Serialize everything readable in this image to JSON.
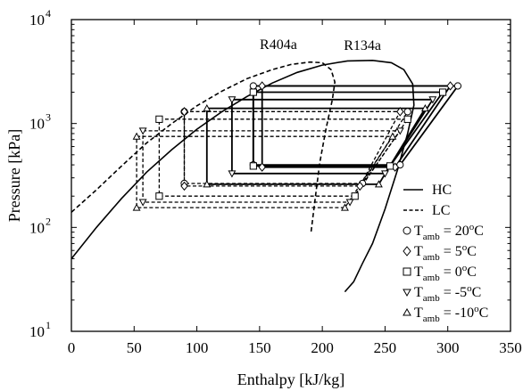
{
  "chart_data": {
    "type": "line",
    "xlabel": "Enthalpy [kJ/kg]",
    "ylabel": "Pressure [kPa]",
    "xlim": [
      0,
      350
    ],
    "ylim": [
      10,
      10000
    ],
    "yscale": "log",
    "x_ticks": [
      "0",
      "50",
      "100",
      "150",
      "200",
      "250",
      "300",
      "350"
    ],
    "y_ticks": [
      {
        "base": "10",
        "exp": "1"
      },
      {
        "base": "10",
        "exp": "2"
      },
      {
        "base": "10",
        "exp": "3"
      },
      {
        "base": "10",
        "exp": "4"
      }
    ],
    "grid": false,
    "legend_position": "bottom-right",
    "curve_labels": [
      "R404a",
      "R134a"
    ],
    "saturation_curves": [
      {
        "name": "R404a",
        "style": "dashed",
        "points": [
          [
            0,
            140
          ],
          [
            20,
            230
          ],
          [
            40,
            390
          ],
          [
            60,
            650
          ],
          [
            80,
            1000
          ],
          [
            100,
            1480
          ],
          [
            120,
            2050
          ],
          [
            140,
            2700
          ],
          [
            160,
            3300
          ],
          [
            175,
            3700
          ],
          [
            190,
            3900
          ],
          [
            200,
            3850
          ],
          [
            207,
            3300
          ],
          [
            210,
            2500
          ],
          [
            208,
            1700
          ],
          [
            203,
            900
          ],
          [
            198,
            420
          ],
          [
            195,
            220
          ],
          [
            191,
            90
          ]
        ]
      },
      {
        "name": "R134a",
        "style": "solid",
        "points": [
          [
            0,
            50
          ],
          [
            20,
            100
          ],
          [
            40,
            190
          ],
          [
            60,
            340
          ],
          [
            80,
            560
          ],
          [
            100,
            880
          ],
          [
            120,
            1300
          ],
          [
            140,
            1820
          ],
          [
            160,
            2450
          ],
          [
            180,
            3100
          ],
          [
            200,
            3650
          ],
          [
            220,
            4000
          ],
          [
            240,
            4050
          ],
          [
            255,
            3850
          ],
          [
            265,
            3300
          ],
          [
            272,
            2400
          ],
          [
            273,
            1500
          ],
          [
            268,
            800
          ],
          [
            260,
            360
          ],
          [
            250,
            150
          ],
          [
            240,
            70
          ],
          [
            232,
            45
          ],
          [
            225,
            30
          ],
          [
            218,
            24
          ]
        ]
      }
    ],
    "series": [
      {
        "name": "HC",
        "style": "solid"
      },
      {
        "name": "LC",
        "style": "dashed"
      }
    ],
    "legend": [
      {
        "type": "line",
        "style": "solid",
        "text": "HC"
      },
      {
        "type": "line",
        "style": "dashed",
        "text": "LC"
      },
      {
        "type": "marker",
        "marker": "circle",
        "main": "T",
        "sub": "amb",
        "rest1": " = 20",
        "sup": "o",
        "rest2": "C"
      },
      {
        "type": "marker",
        "marker": "diamond",
        "main": "T",
        "sub": "amb",
        "rest1": " = 5",
        "sup": "o",
        "rest2": "C"
      },
      {
        "type": "marker",
        "marker": "square",
        "main": "T",
        "sub": "amb",
        "rest1": " = 0",
        "sup": "o",
        "rest2": "C"
      },
      {
        "type": "marker",
        "marker": "triangle-down",
        "main": "T",
        "sub": "amb",
        "rest1": " = -5",
        "sup": "o",
        "rest2": "C"
      },
      {
        "type": "marker",
        "marker": "triangle-up",
        "main": "T",
        "sub": "amb",
        "rest1": " = -10",
        "sup": "o",
        "rest2": "C"
      }
    ],
    "cycles": [
      {
        "cycle": "HC",
        "T_amb": "20",
        "marker": "circle",
        "h_liquid": 145,
        "h_evap_out": 262,
        "h_comp_out": 308,
        "P_high": 2300,
        "P_low": 400
      },
      {
        "cycle": "HC",
        "T_amb": "5",
        "marker": "diamond",
        "h_liquid": 152,
        "h_evap_out": 258,
        "h_comp_out": 302,
        "P_high": 2300,
        "P_low": 380
      },
      {
        "cycle": "HC",
        "T_amb": "0",
        "marker": "square",
        "h_liquid": 145,
        "h_evap_out": 254,
        "h_comp_out": 296,
        "P_high": 2000,
        "P_low": 390
      },
      {
        "cycle": "HC",
        "T_amb": "-5",
        "marker": "triangle-down",
        "h_liquid": 128,
        "h_evap_out": 250,
        "h_comp_out": 288,
        "P_high": 1700,
        "P_low": 330
      },
      {
        "cycle": "HC",
        "T_amb": "-10",
        "marker": "triangle-up",
        "h_liquid": 108,
        "h_evap_out": 245,
        "h_comp_out": 282,
        "P_high": 1400,
        "P_low": 260
      },
      {
        "cycle": "LC",
        "T_amb": "20",
        "marker": "circle",
        "h_liquid": 90,
        "h_evap_out": 232,
        "h_comp_out": 268,
        "P_high": 1300,
        "P_low": 265
      },
      {
        "cycle": "LC",
        "T_amb": "5",
        "marker": "diamond",
        "h_liquid": 90,
        "h_evap_out": 230,
        "h_comp_out": 262,
        "P_high": 1300,
        "P_low": 250
      },
      {
        "cycle": "LC",
        "T_amb": "0",
        "marker": "square",
        "h_liquid": 70,
        "h_evap_out": 226,
        "h_comp_out": 268,
        "P_high": 1100,
        "P_low": 200
      },
      {
        "cycle": "LC",
        "T_amb": "-5",
        "marker": "triangle-down",
        "h_liquid": 57,
        "h_evap_out": 222,
        "h_comp_out": 262,
        "P_high": 850,
        "P_low": 175
      },
      {
        "cycle": "LC",
        "T_amb": "-10",
        "marker": "triangle-up",
        "h_liquid": 52,
        "h_evap_out": 218,
        "h_comp_out": 256,
        "P_high": 750,
        "P_low": 155
      }
    ]
  }
}
